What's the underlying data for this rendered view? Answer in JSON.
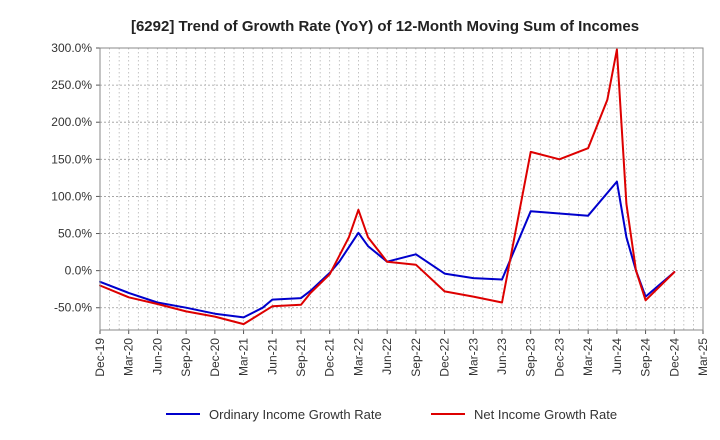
{
  "chart_data": {
    "type": "line",
    "title": "[6292]  Trend of Growth Rate (YoY) of 12-Month Moving Sum of Incomes",
    "xlabel": "",
    "ylabel": "",
    "categories": [
      "Dec-19",
      "Mar-20",
      "Jun-20",
      "Sep-20",
      "Dec-20",
      "Mar-21",
      "Jun-21",
      "Sep-21",
      "Dec-21",
      "Mar-22",
      "Jun-22",
      "Sep-22",
      "Dec-22",
      "Mar-23",
      "Jun-23",
      "Sep-23",
      "Dec-23",
      "Mar-24",
      "Jun-24",
      "Sep-24",
      "Dec-24",
      "Mar-25"
    ],
    "ylim": [
      -80,
      300
    ],
    "yticks": [
      -50,
      0,
      50,
      100,
      150,
      200,
      250,
      300
    ],
    "ytick_labels": [
      "-50.0%",
      "0.0%",
      "50.0%",
      "100.0%",
      "150.0%",
      "200.0%",
      "250.0%",
      "300.0%"
    ],
    "grid": true,
    "legend_position": "bottom",
    "series": [
      {
        "name": "Ordinary Income Growth Rate",
        "color": "#0000cc",
        "points": [
          [
            "Dec-19",
            -15
          ],
          [
            "Mar-20",
            -30
          ],
          [
            "Jun-20",
            -43
          ],
          [
            "Sep-20",
            -50
          ],
          [
            "Dec-20",
            -58
          ],
          [
            "Mar-21",
            -63
          ],
          [
            "May-21",
            -50
          ],
          [
            "Jun-21",
            -39
          ],
          [
            "Sep-21",
            -37
          ],
          [
            "Oct-21",
            -27
          ],
          [
            "Dec-21",
            -3
          ],
          [
            "Jan-22",
            12
          ],
          [
            "Mar-22",
            51
          ],
          [
            "Apr-22",
            33
          ],
          [
            "Jun-22",
            12
          ],
          [
            "Sep-22",
            22
          ],
          [
            "Dec-22",
            -4
          ],
          [
            "Mar-23",
            -10
          ],
          [
            "Jun-23",
            -12
          ],
          [
            "Sep-23",
            80
          ],
          [
            "Dec-23",
            77
          ],
          [
            "Mar-24",
            74
          ],
          [
            "Jun-24",
            120
          ],
          [
            "Jul-24",
            45
          ],
          [
            "Aug-24",
            0
          ],
          [
            "Sep-24",
            -35
          ],
          [
            "Dec-24",
            -2
          ]
        ]
      },
      {
        "name": "Net Income Growth Rate",
        "color": "#dd0000",
        "points": [
          [
            "Dec-19",
            -20
          ],
          [
            "Mar-20",
            -36
          ],
          [
            "Jun-20",
            -45
          ],
          [
            "Sep-20",
            -55
          ],
          [
            "Dec-20",
            -62
          ],
          [
            "Mar-21",
            -72
          ],
          [
            "Jun-21",
            -48
          ],
          [
            "Sep-21",
            -46
          ],
          [
            "Oct-21",
            -30
          ],
          [
            "Dec-21",
            -5
          ],
          [
            "Jan-22",
            20
          ],
          [
            "Feb-22",
            45
          ],
          [
            "Mar-22",
            82
          ],
          [
            "Apr-22",
            45
          ],
          [
            "Jun-22",
            12
          ],
          [
            "Sep-22",
            8
          ],
          [
            "Dec-22",
            -28
          ],
          [
            "Mar-23",
            -35
          ],
          [
            "Jun-23",
            -43
          ],
          [
            "Sep-23",
            160
          ],
          [
            "Dec-23",
            150
          ],
          [
            "Mar-24",
            165
          ],
          [
            "May-24",
            230
          ],
          [
            "Jun-24",
            298
          ],
          [
            "Jul-24",
            90
          ],
          [
            "Aug-24",
            0
          ],
          [
            "Sep-24",
            -40
          ],
          [
            "Dec-24",
            -2
          ]
        ]
      }
    ]
  }
}
